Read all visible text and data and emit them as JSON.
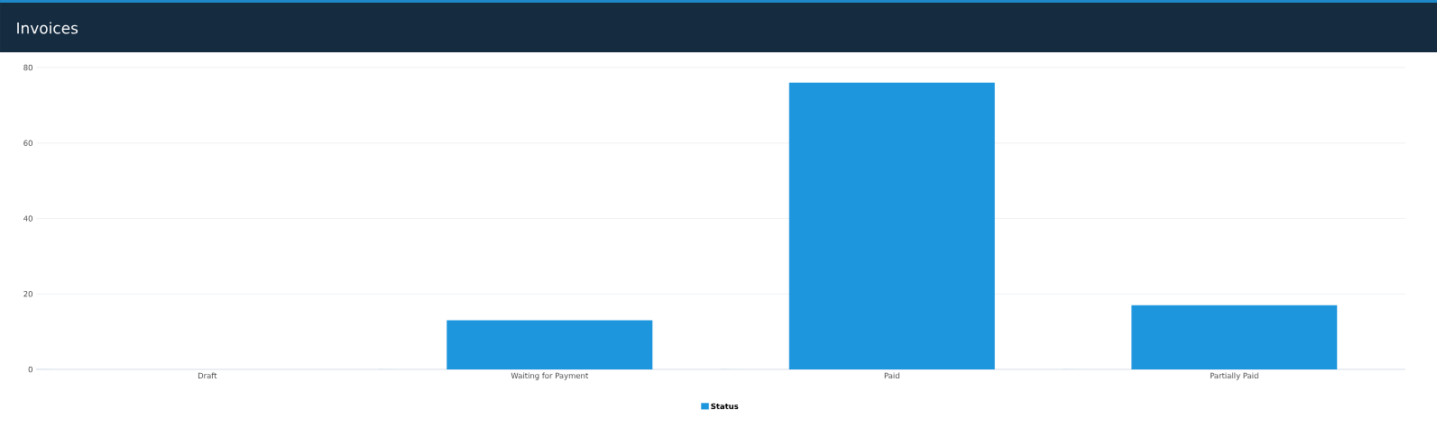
{
  "chart_data": {
    "type": "bar",
    "title": "Invoices",
    "categories": [
      "Draft",
      "Waiting for Payment",
      "Paid",
      "Partially Paid"
    ],
    "series": [
      {
        "name": "Status",
        "color": "#1e96de",
        "values": [
          0,
          13,
          76,
          17
        ]
      }
    ],
    "ylim": [
      0,
      80
    ],
    "yticks": [
      0,
      20,
      40,
      60,
      80
    ],
    "grid": "y",
    "legend": "bottom"
  }
}
